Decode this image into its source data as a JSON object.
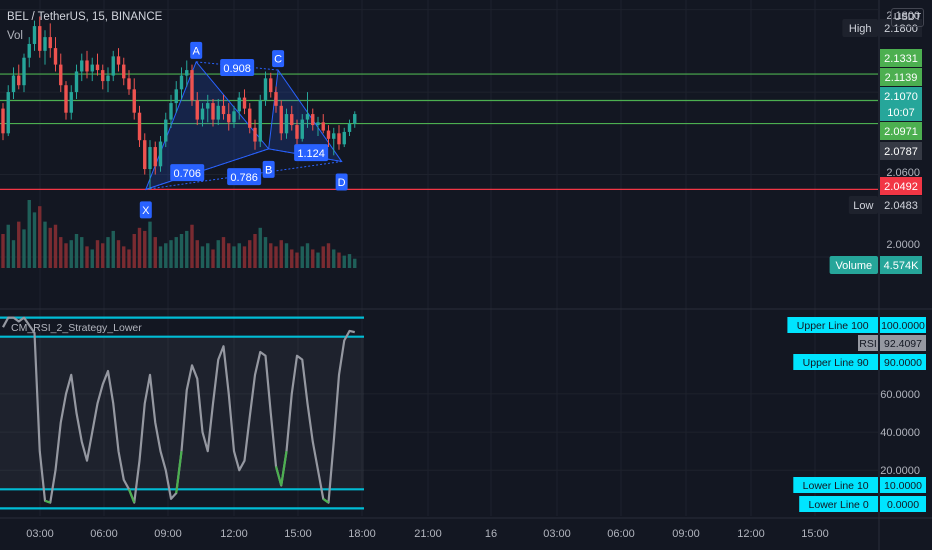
{
  "header": {
    "symbol": "BEL / TetherUS, 15, BINANCE",
    "volume_label": "Vol",
    "currency": "USDT"
  },
  "indicator": {
    "title": "CM_RSI_2_Strategy_Lower"
  },
  "colors": {
    "background": "#131722",
    "grid": "#1e222d",
    "up": "#26a69a",
    "down": "#ef5350",
    "pattern": "#2962ff",
    "level_green": "#4caf50",
    "level_red": "#f23645",
    "rsi_line": "#9598a1",
    "rsi_band": "#00bcd4",
    "axis_text": "#b2b5be"
  },
  "chart_data": [
    {
      "type": "candlestick",
      "panel": "price",
      "scale": "linear",
      "grid": true,
      "ylim": [
        1.992,
        2.187
      ],
      "x_time_ticks": [
        "03:00",
        "06:00",
        "09:00",
        "12:00",
        "15:00",
        "18:00",
        "21:00",
        "16",
        "03:00",
        "06:00",
        "09:00",
        "12:00",
        "15:00"
      ],
      "y_ticks": [
        "2.1800",
        "2.0600",
        "2.0000"
      ],
      "price_labels": [
        {
          "text": "High",
          "value": "2.1800",
          "kind": "high"
        },
        {
          "text": "",
          "value": "2.1331",
          "kind": "green"
        },
        {
          "text": "",
          "value": "2.1139",
          "kind": "green"
        },
        {
          "text": "",
          "value": "2.1070",
          "kind": "last"
        },
        {
          "text": "",
          "value": "10:07",
          "kind": "countdown"
        },
        {
          "text": "",
          "value": "2.0971",
          "kind": "green"
        },
        {
          "text": "",
          "value": "2.0787",
          "kind": "gray"
        },
        {
          "text": "",
          "value": "2.0492",
          "kind": "red"
        },
        {
          "text": "Low",
          "value": "2.0483",
          "kind": "low"
        },
        {
          "text": "Volume",
          "value": "4.574K",
          "kind": "volume"
        }
      ],
      "levels": [
        {
          "value": 2.1331,
          "color": "green"
        },
        {
          "value": 2.1139,
          "color": "green"
        },
        {
          "value": 2.0971,
          "color": "green"
        },
        {
          "value": 2.0492,
          "color": "red"
        }
      ],
      "ohlc": [
        [
          2.108,
          2.112,
          2.085,
          2.09
        ],
        [
          2.09,
          2.125,
          2.088,
          2.12
        ],
        [
          2.12,
          2.138,
          2.115,
          2.132
        ],
        [
          2.132,
          2.14,
          2.122,
          2.125
        ],
        [
          2.125,
          2.148,
          2.12,
          2.145
        ],
        [
          2.145,
          2.16,
          2.138,
          2.155
        ],
        [
          2.155,
          2.172,
          2.15,
          2.168
        ],
        [
          2.168,
          2.175,
          2.145,
          2.15
        ],
        [
          2.15,
          2.165,
          2.14,
          2.16
        ],
        [
          2.16,
          2.17,
          2.145,
          2.152
        ],
        [
          2.152,
          2.16,
          2.135,
          2.14
        ],
        [
          2.14,
          2.148,
          2.12,
          2.125
        ],
        [
          2.125,
          2.128,
          2.1,
          2.105
        ],
        [
          2.105,
          2.125,
          2.1,
          2.12
        ],
        [
          2.12,
          2.14,
          2.115,
          2.135
        ],
        [
          2.135,
          2.148,
          2.128,
          2.143
        ],
        [
          2.143,
          2.15,
          2.13,
          2.135
        ],
        [
          2.135,
          2.145,
          2.128,
          2.14
        ],
        [
          2.14,
          2.148,
          2.132,
          2.136
        ],
        [
          2.136,
          2.14,
          2.122,
          2.128
        ],
        [
          2.128,
          2.138,
          2.12,
          2.132
        ],
        [
          2.132,
          2.15,
          2.128,
          2.146
        ],
        [
          2.146,
          2.152,
          2.135,
          2.14
        ],
        [
          2.14,
          2.145,
          2.125,
          2.13
        ],
        [
          2.13,
          2.136,
          2.118,
          2.122
        ],
        [
          2.122,
          2.13,
          2.1,
          2.105
        ],
        [
          2.105,
          2.11,
          2.08,
          2.085
        ],
        [
          2.085,
          2.09,
          2.06,
          2.064
        ],
        [
          2.064,
          2.085,
          2.049,
          2.08
        ],
        [
          2.08,
          2.084,
          2.06,
          2.066
        ],
        [
          2.066,
          2.088,
          2.062,
          2.084
        ],
        [
          2.084,
          2.105,
          2.08,
          2.1
        ],
        [
          2.1,
          2.118,
          2.094,
          2.112
        ],
        [
          2.112,
          2.128,
          2.105,
          2.122
        ],
        [
          2.122,
          2.138,
          2.115,
          2.132
        ],
        [
          2.132,
          2.143,
          2.124,
          2.136
        ],
        [
          2.136,
          2.14,
          2.11,
          2.114
        ],
        [
          2.114,
          2.12,
          2.096,
          2.1
        ],
        [
          2.1,
          2.112,
          2.095,
          2.108
        ],
        [
          2.108,
          2.118,
          2.098,
          2.112
        ],
        [
          2.112,
          2.115,
          2.095,
          2.1
        ],
        [
          2.1,
          2.115,
          2.096,
          2.11
        ],
        [
          2.11,
          2.118,
          2.1,
          2.104
        ],
        [
          2.104,
          2.112,
          2.092,
          2.098
        ],
        [
          2.098,
          2.11,
          2.094,
          2.106
        ],
        [
          2.106,
          2.12,
          2.1,
          2.116
        ],
        [
          2.116,
          2.122,
          2.104,
          2.108
        ],
        [
          2.108,
          2.112,
          2.09,
          2.094
        ],
        [
          2.094,
          2.1,
          2.078,
          2.084
        ],
        [
          2.084,
          2.118,
          2.08,
          2.114
        ],
        [
          2.114,
          2.135,
          2.11,
          2.13
        ],
        [
          2.13,
          2.134,
          2.116,
          2.12
        ],
        [
          2.12,
          2.124,
          2.105,
          2.11
        ],
        [
          2.11,
          2.114,
          2.085,
          2.09
        ],
        [
          2.09,
          2.108,
          2.086,
          2.104
        ],
        [
          2.104,
          2.11,
          2.092,
          2.096
        ],
        [
          2.096,
          2.1,
          2.082,
          2.086
        ],
        [
          2.086,
          2.104,
          2.084,
          2.1
        ],
        [
          2.1,
          2.12,
          2.094,
          2.104
        ],
        [
          2.104,
          2.108,
          2.092,
          2.096
        ],
        [
          2.096,
          2.102,
          2.088,
          2.098
        ],
        [
          2.098,
          2.104,
          2.09,
          2.092
        ],
        [
          2.092,
          2.096,
          2.08,
          2.086
        ],
        [
          2.086,
          2.094,
          2.074,
          2.09
        ],
        [
          2.09,
          2.096,
          2.078,
          2.082
        ],
        [
          2.082,
          2.094,
          2.08,
          2.091
        ],
        [
          2.091,
          2.1,
          2.088,
          2.097
        ],
        [
          2.097,
          2.106,
          2.094,
          2.104
        ]
      ],
      "volume": [
        22,
        28,
        18,
        30,
        25,
        44,
        36,
        40,
        30,
        26,
        28,
        20,
        16,
        18,
        22,
        20,
        14,
        12,
        18,
        16,
        20,
        24,
        18,
        14,
        12,
        22,
        26,
        24,
        30,
        20,
        14,
        16,
        18,
        20,
        22,
        24,
        28,
        18,
        14,
        16,
        12,
        18,
        20,
        16,
        14,
        16,
        14,
        18,
        22,
        26,
        20,
        16,
        14,
        18,
        16,
        12,
        10,
        14,
        16,
        12,
        10,
        14,
        16,
        12,
        10,
        8,
        9,
        6
      ],
      "harmonic_pattern": {
        "points": [
          {
            "label": "X",
            "price": 2.0492
          },
          {
            "label": "A",
            "price": 2.142
          },
          {
            "label": "B",
            "price": 2.0787
          },
          {
            "label": "C",
            "price": 2.136
          },
          {
            "label": "D",
            "price": 2.0695
          }
        ],
        "ratios": [
          "0.908",
          "0.706",
          "0.786",
          "1.124"
        ]
      }
    },
    {
      "type": "line",
      "panel": "rsi",
      "title": "CM_RSI_2_Strategy_Lower",
      "scale": "linear",
      "grid": true,
      "ylim": [
        -4,
        104
      ],
      "y_ticks": [
        "60.0000",
        "40.0000",
        "20.0000"
      ],
      "series": [
        {
          "name": "RSI",
          "value_label": "92.4097"
        }
      ],
      "lines": [
        {
          "name": "Upper Line 100",
          "value": 100,
          "label": "100.0000"
        },
        {
          "name": "Upper Line 90",
          "value": 90,
          "label": "90.0000"
        },
        {
          "name": "Lower Line 10",
          "value": 10,
          "label": "10.0000"
        },
        {
          "name": "Lower Line 0",
          "value": 0,
          "label": "0.0000"
        }
      ],
      "rsi_values": [
        95,
        100,
        100,
        98,
        100,
        96,
        92,
        30,
        4,
        3,
        20,
        45,
        60,
        70,
        50,
        35,
        25,
        40,
        55,
        65,
        72,
        55,
        30,
        15,
        10,
        3,
        25,
        55,
        70,
        45,
        30,
        20,
        5,
        8,
        30,
        62,
        75,
        68,
        40,
        30,
        55,
        78,
        85,
        60,
        30,
        20,
        25,
        48,
        70,
        82,
        80,
        50,
        22,
        12,
        30,
        60,
        80,
        78,
        55,
        35,
        20,
        5,
        3,
        35,
        70,
        88,
        93,
        92.4
      ],
      "rsi_green_segments": [
        [
          8,
          9
        ],
        [
          24,
          25
        ],
        [
          33,
          34
        ],
        [
          52,
          54
        ],
        [
          61,
          62
        ]
      ]
    }
  ]
}
